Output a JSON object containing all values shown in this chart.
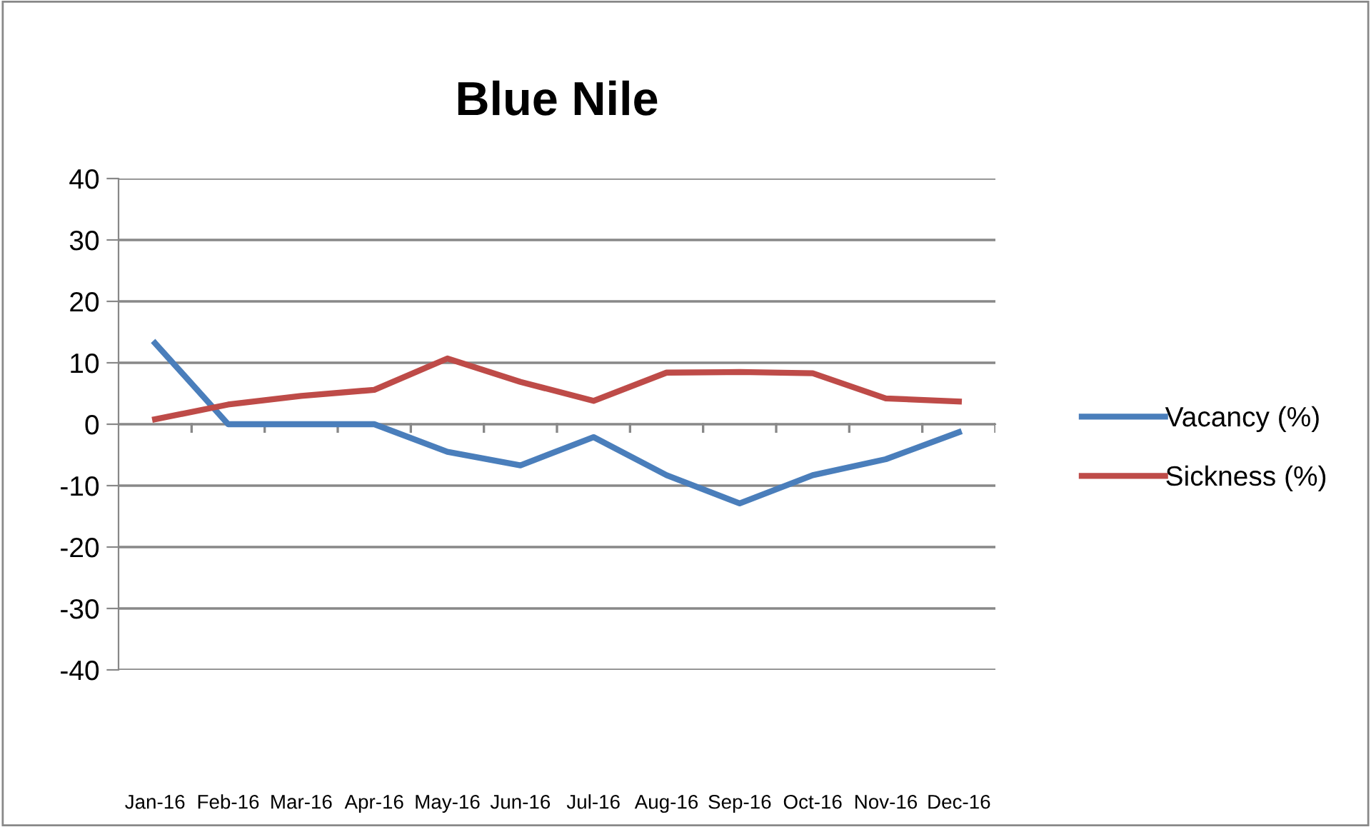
{
  "chart_data": {
    "type": "line",
    "title": "Blue Nile",
    "categories": [
      "Jan-16",
      "Feb-16",
      "Mar-16",
      "Apr-16",
      "May-16",
      "Jun-16",
      "Jul-16",
      "Aug-16",
      "Sep-16",
      "Oct-16",
      "Nov-16",
      "Dec-16"
    ],
    "series": [
      {
        "name": "Vacancy (%)",
        "color": "#4a7ebb",
        "values": [
          13.2,
          0,
          0,
          0,
          -4.5,
          -6.7,
          -2.1,
          -8.3,
          -12.9,
          -8.3,
          -5.7,
          -1.3
        ]
      },
      {
        "name": "Sickness (%)",
        "color": "#be4b48",
        "values": [
          0.8,
          3.2,
          4.6,
          5.6,
          10.7,
          6.9,
          3.8,
          8.4,
          8.5,
          8.3,
          4.2,
          3.7
        ]
      }
    ],
    "ylim": [
      -40,
      40
    ],
    "yticks": [
      -40,
      -30,
      -20,
      -10,
      0,
      10,
      20,
      30,
      40
    ],
    "grid": "y",
    "legend": "right",
    "marker": "none",
    "line_style": "solid"
  }
}
